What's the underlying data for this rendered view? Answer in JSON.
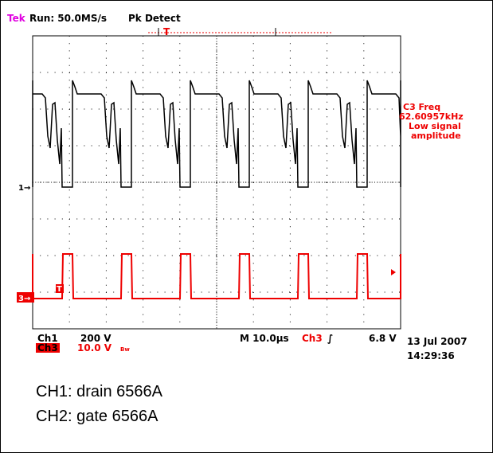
{
  "header": {
    "brand": "Tek",
    "run": "Run: 50.0MS/s",
    "mode": "Pk Detect",
    "trigger_marker": "T"
  },
  "measurement": {
    "lines": [
      "C3 Freq",
      "62.60957kHz",
      "Low signal",
      "amplitude"
    ]
  },
  "markers": {
    "ch1": "1→",
    "ch3": "3→",
    "trigger": "T"
  },
  "readout": {
    "ch1_label": "Ch1",
    "ch1_scale": "200 V",
    "ch3_label": "Ch3",
    "ch3_scale": "10.0 V",
    "bw": "Bw",
    "timebase": "M 10.0µs",
    "trig_source": "Ch3",
    "trig_slope": "∫",
    "trig_level": "6.8 V",
    "date": "13 Jul 2007",
    "time": "14:29:36"
  },
  "captions": [
    "CH1: drain 6566A",
    "CH2: gate 6566A"
  ]
}
